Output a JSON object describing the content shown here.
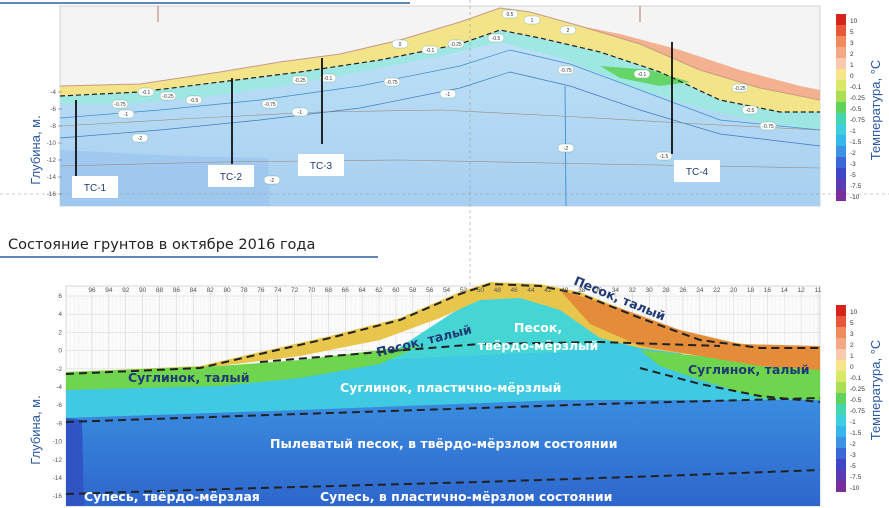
{
  "heading": "Состояние грунтов в октябре 2016 года",
  "colors": {
    "accent_line": "#2d5fa8"
  },
  "chart_data": [
    {
      "type": "heatmap",
      "ylabel": "Глубина, м.",
      "legend_title": "Температура, °С",
      "y_ticks": [
        "-4",
        "-6",
        "-8",
        "-10",
        "-12",
        "-14",
        "-16"
      ],
      "legend": [
        {
          "label": "10",
          "color": "#d6241b"
        },
        {
          "label": "5",
          "color": "#e8573a"
        },
        {
          "label": "3",
          "color": "#f08b5b"
        },
        {
          "label": "2",
          "color": "#f4a883"
        },
        {
          "label": "1",
          "color": "#f8c9ad"
        },
        {
          "label": "0",
          "color": "#f7e58a"
        },
        {
          "label": "-0.1",
          "color": "#d9e866"
        },
        {
          "label": "-0.25",
          "color": "#a9de55"
        },
        {
          "label": "-0.5",
          "color": "#5fd35b"
        },
        {
          "label": "-0.75",
          "color": "#45d5b0"
        },
        {
          "label": "-1",
          "color": "#3fcde0"
        },
        {
          "label": "-1.5",
          "color": "#36b6ea"
        },
        {
          "label": "-2",
          "color": "#3c92e3"
        },
        {
          "label": "-3",
          "color": "#3a68d6"
        },
        {
          "label": "-5",
          "color": "#3f45c4"
        },
        {
          "label": "-7.5",
          "color": "#5a3bb3"
        },
        {
          "label": "-10",
          "color": "#7a2d9c"
        }
      ],
      "boreholes": [
        "TC-1",
        "TC-2",
        "TC-3",
        "TC-4"
      ],
      "isolines": [
        "0.5",
        "1",
        "2",
        "0",
        "-0.1",
        "-0.25",
        "-0.5",
        "-0.75",
        "-1",
        "-1.5",
        "-2"
      ]
    },
    {
      "type": "heatmap",
      "ylabel": "Глубина, м.",
      "legend_title": "Температура, °С",
      "x_ticks": [
        "96",
        "94",
        "92",
        "90",
        "88",
        "86",
        "84",
        "82",
        "80",
        "78",
        "76",
        "74",
        "72",
        "70",
        "68",
        "66",
        "64",
        "62",
        "60",
        "58",
        "56",
        "54",
        "52",
        "50",
        "48",
        "46",
        "44",
        "42",
        "40",
        "38",
        "36",
        "34",
        "32",
        "30",
        "28",
        "26",
        "24",
        "22",
        "20",
        "18",
        "16",
        "14",
        "12",
        "11"
      ],
      "y_ticks": [
        "6",
        "4",
        "2",
        "0",
        "-2",
        "-4",
        "-6",
        "-8",
        "-10",
        "-12",
        "-14",
        "-16"
      ],
      "legend": [
        {
          "label": "10",
          "color": "#d6241b"
        },
        {
          "label": "5",
          "color": "#e8573a"
        },
        {
          "label": "3",
          "color": "#f08b5b"
        },
        {
          "label": "2",
          "color": "#f4a883"
        },
        {
          "label": "1",
          "color": "#f8c9ad"
        },
        {
          "label": "0",
          "color": "#f7e58a"
        },
        {
          "label": "-0.1",
          "color": "#d9e866"
        },
        {
          "label": "-0.25",
          "color": "#a9de55"
        },
        {
          "label": "-0.5",
          "color": "#5fd35b"
        },
        {
          "label": "-0.75",
          "color": "#45d5b0"
        },
        {
          "label": "-1",
          "color": "#3fcde0"
        },
        {
          "label": "-1.5",
          "color": "#36b6ea"
        },
        {
          "label": "-2",
          "color": "#3c92e3"
        },
        {
          "label": "-3",
          "color": "#3a68d6"
        },
        {
          "label": "-5",
          "color": "#3f45c4"
        },
        {
          "label": "-7.5",
          "color": "#5a3bb3"
        },
        {
          "label": "-10",
          "color": "#7a2d9c"
        }
      ],
      "soil_labels": [
        "Песок, талый",
        "Песок, талый",
        "Песок,",
        "твёрдо-мёрзлый",
        "Суглинок, талый",
        "Суглинок, талый",
        "Суглинок, пластично-мёрзлый",
        "Пылеватый песок, в твёрдо-мёрзлом состоянии",
        "Супесь, твёрдо-мёрзлая",
        "Супесь, в пластично-мёрзлом состоянии"
      ]
    }
  ]
}
